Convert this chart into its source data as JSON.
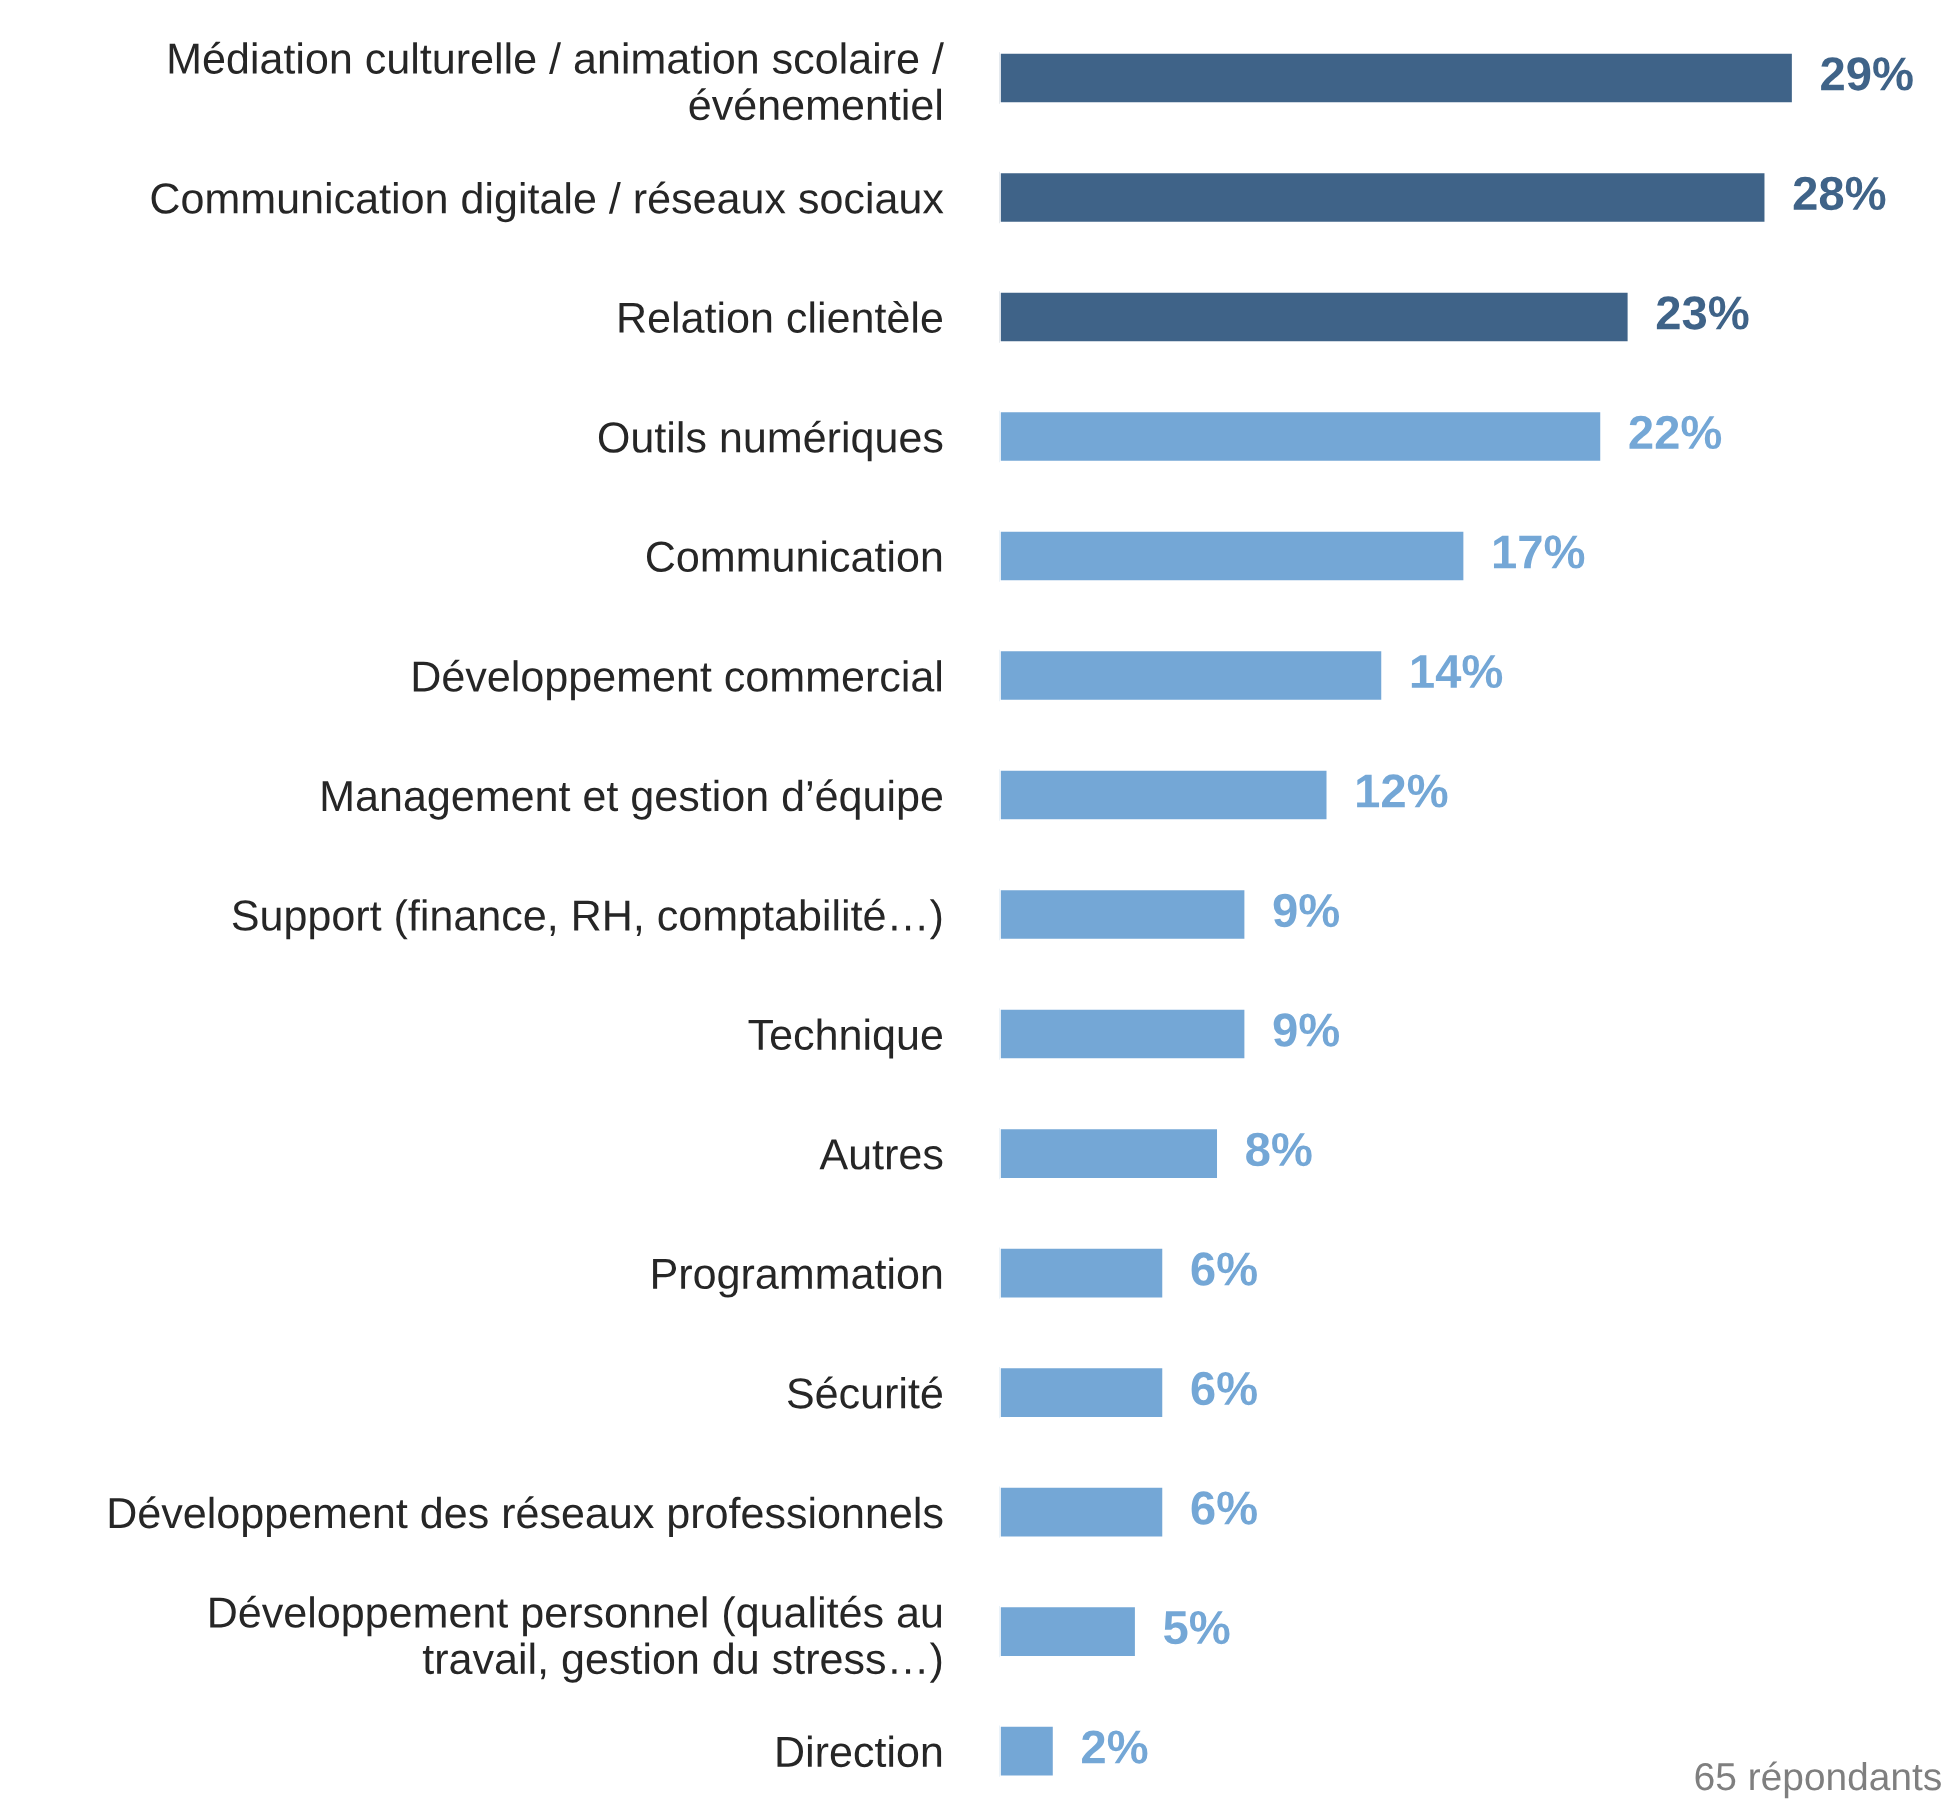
{
  "chart_data": {
    "type": "bar",
    "orientation": "horizontal",
    "categories": [
      "Médiation culturelle / animation scolaire /\névénementiel",
      "Communication digitale / réseaux sociaux",
      "Relation clientèle",
      "Outils numériques",
      "Communication",
      "Développement commercial",
      "Management et gestion d’équipe",
      "Support (finance, RH, comptabilité…)",
      "Technique",
      "Autres",
      "Programmation",
      "Sécurité",
      "Développement des réseaux professionnels",
      "Développement personnel (qualités au\ntravail, gestion du stress…)",
      "Direction"
    ],
    "values": [
      29,
      28,
      23,
      22,
      17,
      14,
      12,
      9,
      9,
      8,
      6,
      6,
      6,
      5,
      2
    ],
    "value_labels": [
      "29%",
      "28%",
      "23%",
      "22%",
      "17%",
      "14%",
      "12%",
      "9%",
      "9%",
      "8%",
      "6%",
      "6%",
      "6%",
      "5%",
      "2%"
    ],
    "colors": [
      "#3f6388",
      "#3f6388",
      "#3f6388",
      "#74a7d6",
      "#74a7d6",
      "#74a7d6",
      "#74a7d6",
      "#74a7d6",
      "#74a7d6",
      "#74a7d6",
      "#74a7d6",
      "#74a7d6",
      "#74a7d6",
      "#74a7d6",
      "#74a7d6"
    ],
    "annotations": [
      "65 répondants"
    ],
    "grid": false,
    "legend": false
  }
}
